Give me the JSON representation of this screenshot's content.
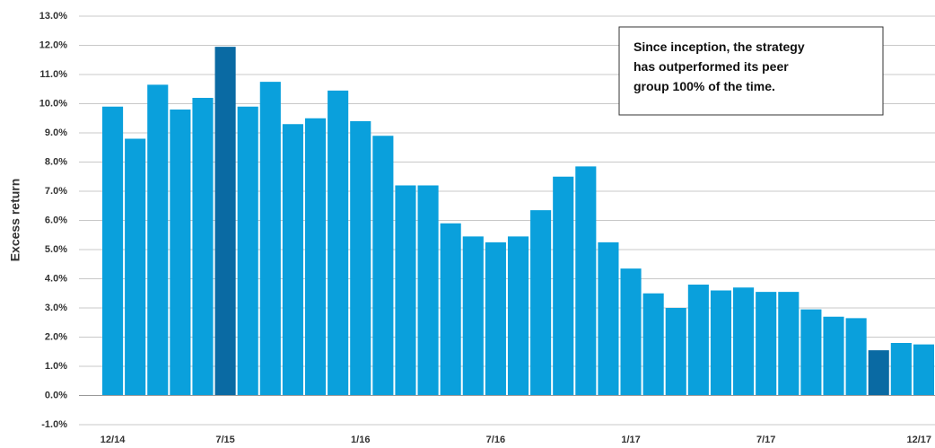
{
  "chart_data": {
    "type": "bar",
    "y_label": "Excess return",
    "annotation": [
      "Since inception, the strategy",
      "has outperformed its peer",
      "group 100% of the time."
    ],
    "categories": [
      "12/14",
      null,
      null,
      null,
      null,
      "7/15",
      null,
      null,
      null,
      null,
      null,
      "1/16",
      null,
      null,
      null,
      null,
      null,
      "7/16",
      null,
      null,
      null,
      null,
      null,
      "1/17",
      null,
      null,
      null,
      null,
      null,
      "7/17",
      null,
      null,
      null,
      null,
      null,
      null,
      "12/17"
    ],
    "values": [
      9.9,
      8.8,
      10.65,
      9.8,
      10.2,
      11.95,
      9.9,
      10.75,
      9.3,
      9.5,
      10.45,
      9.4,
      8.9,
      7.2,
      7.2,
      5.9,
      5.45,
      5.25,
      5.45,
      6.35,
      7.5,
      7.85,
      5.25,
      4.35,
      3.5,
      3.0,
      3.8,
      3.6,
      3.7,
      3.55,
      3.55,
      2.95,
      2.7,
      2.65,
      1.55,
      1.8,
      1.75
    ],
    "colors": [
      "#0aa0dc",
      "#0aa0dc",
      "#0aa0dc",
      "#0aa0dc",
      "#0aa0dc",
      "#0a6aa3",
      "#0aa0dc",
      "#0aa0dc",
      "#0aa0dc",
      "#0aa0dc",
      "#0aa0dc",
      "#0aa0dc",
      "#0aa0dc",
      "#0aa0dc",
      "#0aa0dc",
      "#0aa0dc",
      "#0aa0dc",
      "#0aa0dc",
      "#0aa0dc",
      "#0aa0dc",
      "#0aa0dc",
      "#0aa0dc",
      "#0aa0dc",
      "#0aa0dc",
      "#0aa0dc",
      "#0aa0dc",
      "#0aa0dc",
      "#0aa0dc",
      "#0aa0dc",
      "#0aa0dc",
      "#0aa0dc",
      "#0aa0dc",
      "#0aa0dc",
      "#0aa0dc",
      "#0a6aa3",
      "#0aa0dc",
      "#0aa0dc"
    ],
    "ylim": [
      -1,
      13
    ],
    "yticks": [
      {
        "value": -1,
        "label": "-1.0%"
      },
      {
        "value": 0,
        "label": "0.0%"
      },
      {
        "value": 1,
        "label": "1.0%"
      },
      {
        "value": 2,
        "label": "2.0%"
      },
      {
        "value": 3,
        "label": "3.0%"
      },
      {
        "value": 4,
        "label": "4.0%"
      },
      {
        "value": 5,
        "label": "5.0%"
      },
      {
        "value": 6,
        "label": "6.0%"
      },
      {
        "value": 7,
        "label": "7.0%"
      },
      {
        "value": 8,
        "label": "8.0%"
      },
      {
        "value": 9,
        "label": "9.0%"
      },
      {
        "value": 10,
        "label": "10.0%"
      },
      {
        "value": 11,
        "label": "11.0%"
      },
      {
        "value": 12,
        "label": "12.0%"
      },
      {
        "value": 13,
        "label": "13.0%"
      }
    ],
    "grid": true
  }
}
